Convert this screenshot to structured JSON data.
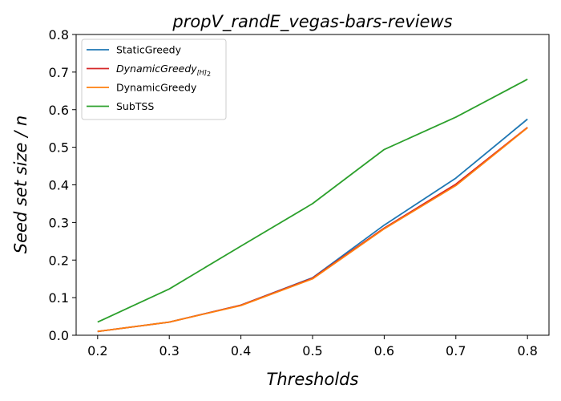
{
  "chart_data": {
    "type": "line",
    "title": "propV_randE_vegas-bars-reviews",
    "xlabel": "Thresholds",
    "ylabel": "Seed set size / n",
    "x": [
      0.2,
      0.3,
      0.4,
      0.5,
      0.6,
      0.7,
      0.8
    ],
    "x_ticks": [
      "0.2",
      "0.3",
      "0.4",
      "0.5",
      "0.6",
      "0.7",
      "0.8"
    ],
    "y_ticks": [
      "0.0",
      "0.1",
      "0.2",
      "0.3",
      "0.4",
      "0.5",
      "0.6",
      "0.7",
      "0.8"
    ],
    "xlim": [
      0.17,
      0.83
    ],
    "ylim": [
      0.0,
      0.8
    ],
    "grid": false,
    "legend_position": "top-left",
    "series": [
      {
        "name": "StaticGreedy",
        "legend_main": "StaticGreedy",
        "legend_sub": "",
        "legend_italic": false,
        "color": "#1f77b4",
        "values": [
          0.01,
          0.035,
          0.08,
          0.153,
          0.293,
          0.418,
          0.575
        ]
      },
      {
        "name": "DynamicGreedy_[H]_2",
        "legend_main": "DynamicGreedy",
        "legend_sub": "[H]",
        "legend_sub2": "2",
        "legend_italic": true,
        "color": "#d62728",
        "values": [
          0.01,
          0.035,
          0.08,
          0.152,
          0.285,
          0.402,
          0.553
        ]
      },
      {
        "name": "DynamicGreedy",
        "legend_main": "DynamicGreedy",
        "legend_sub": "",
        "legend_italic": false,
        "color": "#ff7f0e",
        "values": [
          0.01,
          0.035,
          0.079,
          0.15,
          0.283,
          0.398,
          0.552
        ]
      },
      {
        "name": "SubTSS",
        "legend_main": "SubTSS",
        "legend_sub": "",
        "legend_italic": false,
        "color": "#2ca02c",
        "values": [
          0.035,
          0.123,
          0.237,
          0.35,
          0.494,
          0.58,
          0.681
        ]
      }
    ]
  }
}
